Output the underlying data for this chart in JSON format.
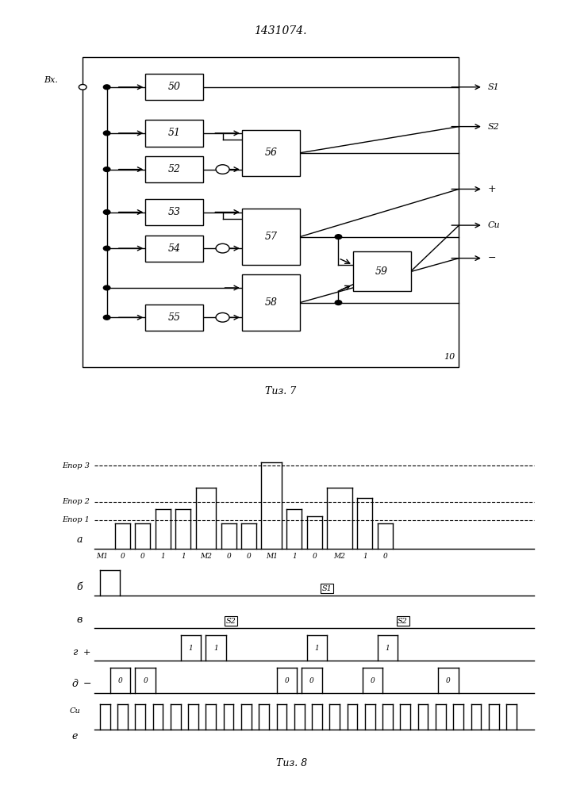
{
  "title": "1431074.",
  "bg_color": "#ffffff",
  "line_color": "#000000",
  "fig7_caption": "Τиз. 7",
  "fig8_caption": "Τиз. 8"
}
